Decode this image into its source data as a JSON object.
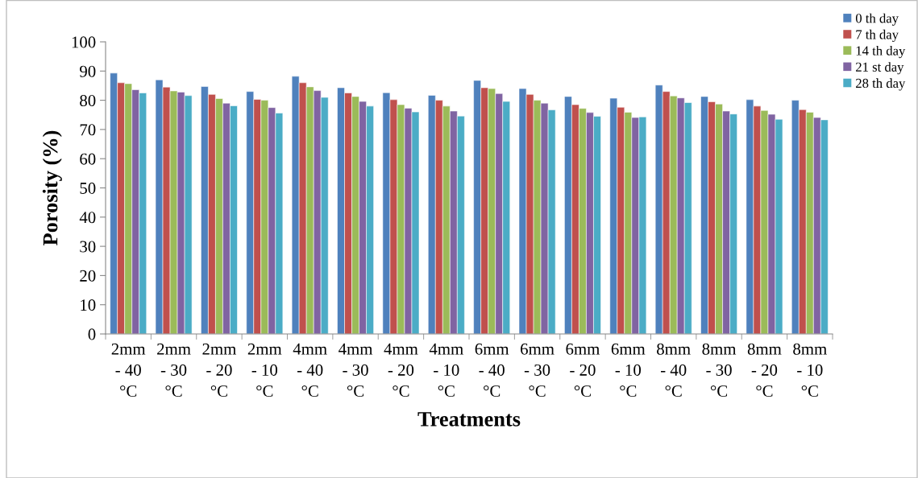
{
  "chart_data": {
    "type": "bar",
    "xlabel": "Treatments",
    "ylabel": "Porosity (%)",
    "categories": [
      "2mm - 40 °C",
      "2mm - 30 °C",
      "2mm - 20 °C",
      "2mm - 10 °C",
      "4mm - 40 °C",
      "4mm - 30 °C",
      "4mm - 20 °C",
      "4mm - 10 °C",
      "6mm - 40 °C",
      "6mm - 30 °C",
      "6mm - 20 °C",
      "6mm - 10 °C",
      "8mm - 40 °C",
      "8mm - 30 °C",
      "8mm - 20 °C",
      "8mm - 10 °C"
    ],
    "series": [
      {
        "name": "0 th day",
        "color": "#4f81bd",
        "values": [
          89.3,
          87,
          84.7,
          83,
          88.2,
          84.3,
          82.6,
          81.7,
          86.8,
          84,
          81.3,
          80.7,
          85.2,
          81.3,
          80.2,
          80
        ]
      },
      {
        "name": "7 th day",
        "color": "#c0504d",
        "values": [
          86,
          84.5,
          82,
          80.3,
          86,
          82.5,
          80.2,
          80,
          84.3,
          82,
          78.5,
          77.6,
          83,
          79.5,
          78,
          76.8
        ]
      },
      {
        "name": "14 th day",
        "color": "#9bbb59",
        "values": [
          85.7,
          83.2,
          80.6,
          80,
          84.6,
          81.3,
          78.5,
          78,
          84,
          80,
          77.2,
          75.9,
          81.5,
          78.7,
          76.5,
          75.9
        ]
      },
      {
        "name": "21 st day",
        "color": "#8064a2",
        "values": [
          83.6,
          82.8,
          79,
          77.5,
          83.3,
          79.6,
          77.3,
          76.3,
          82.3,
          79,
          75.8,
          74.1,
          80.8,
          76.3,
          75.2,
          74.1
        ]
      },
      {
        "name": "28 th day",
        "color": "#4bacc6",
        "values": [
          82.5,
          81.6,
          78.1,
          75.6,
          81,
          78,
          76,
          74.6,
          79.6,
          76.7,
          74.5,
          74.3,
          79.2,
          75.3,
          73.5,
          73.3
        ]
      }
    ],
    "ylim": [
      0,
      100
    ],
    "yticks": [
      0,
      10,
      20,
      30,
      40,
      50,
      60,
      70,
      80,
      90,
      100
    ],
    "grid": false,
    "legend": "top right"
  }
}
